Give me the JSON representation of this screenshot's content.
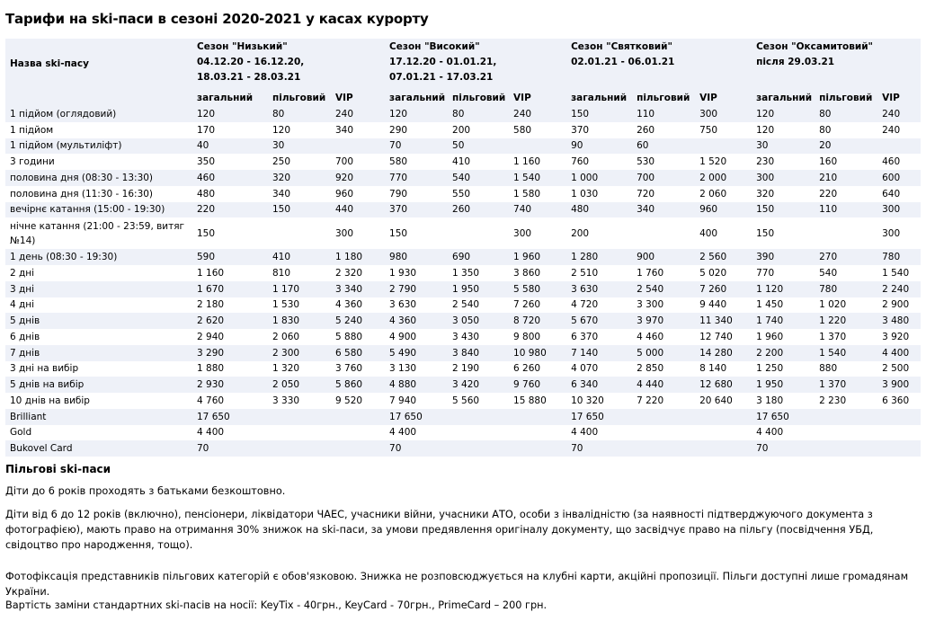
{
  "title": "Тарифи на ski-паси в сезоні 2020-2021 у касах курорту",
  "table": {
    "name_header": "Назва ski-пасу",
    "seasons": [
      {
        "name": "Сезон \"Низький\"",
        "dates1": "04.12.20 - 16.12.20,",
        "dates2": "18.03.21 - 28.03.21"
      },
      {
        "name": "Сезон \"Високий\"",
        "dates1": "17.12.20 - 01.01.21,",
        "dates2": "07.01.21 - 17.03.21"
      },
      {
        "name": "Сезон \"Святковий\"",
        "dates1": "02.01.21 - 06.01.21",
        "dates2": ""
      },
      {
        "name": "Сезон \"Оксамитовий\"",
        "dates1": "після 29.03.21",
        "dates2": ""
      }
    ],
    "sub_headers": [
      "загальний",
      "пільговий",
      "VIP"
    ],
    "rows": [
      {
        "name": "1 підйом (оглядовий)",
        "v": [
          "120",
          "80",
          "240",
          "120",
          "80",
          "240",
          "150",
          "110",
          "300",
          "120",
          "80",
          "240"
        ]
      },
      {
        "name": "1 підйом",
        "v": [
          "170",
          "120",
          "340",
          "290",
          "200",
          "580",
          "370",
          "260",
          "750",
          "120",
          "80",
          "240"
        ]
      },
      {
        "name": "1 підйом (мультиліфт)",
        "v": [
          "40",
          "30",
          "",
          "70",
          "50",
          "",
          "90",
          "60",
          "",
          "30",
          "20",
          ""
        ]
      },
      {
        "name": "3 години",
        "v": [
          "350",
          "250",
          "700",
          "580",
          "410",
          "1 160",
          "760",
          "530",
          "1 520",
          "230",
          "160",
          "460"
        ]
      },
      {
        "name": "половина дня (08:30 - 13:30)",
        "v": [
          "460",
          "320",
          "920",
          "770",
          "540",
          "1 540",
          "1 000",
          "700",
          "2 000",
          "300",
          "210",
          "600"
        ]
      },
      {
        "name": "половина дня (11:30 - 16:30)",
        "v": [
          "480",
          "340",
          "960",
          "790",
          "550",
          "1 580",
          "1 030",
          "720",
          "2 060",
          "320",
          "220",
          "640"
        ]
      },
      {
        "name": "вечірнє катання (15:00 - 19:30)",
        "v": [
          "220",
          "150",
          "440",
          "370",
          "260",
          "740",
          "480",
          "340",
          "960",
          "150",
          "110",
          "300"
        ]
      },
      {
        "name": "нічне катання (21:00 - 23:59, витяг №14)",
        "v": [
          "150",
          "",
          "300",
          "150",
          "",
          "300",
          "200",
          "",
          "400",
          "150",
          "",
          "300"
        ],
        "tall": true
      },
      {
        "name": "1 день (08:30 - 19:30)",
        "v": [
          "590",
          "410",
          "1 180",
          "980",
          "690",
          "1 960",
          "1 280",
          "900",
          "2 560",
          "390",
          "270",
          "780"
        ]
      },
      {
        "name": "2 дні",
        "v": [
          "1 160",
          "810",
          "2 320",
          "1 930",
          "1 350",
          "3 860",
          "2 510",
          "1 760",
          "5 020",
          "770",
          "540",
          "1 540"
        ]
      },
      {
        "name": "3 дні",
        "v": [
          "1 670",
          "1 170",
          "3 340",
          "2 790",
          "1 950",
          "5 580",
          "3 630",
          "2 540",
          "7 260",
          "1 120",
          "780",
          "2 240"
        ]
      },
      {
        "name": "4 дні",
        "v": [
          "2 180",
          "1 530",
          "4 360",
          "3 630",
          "2 540",
          "7 260",
          "4 720",
          "3 300",
          "9 440",
          "1 450",
          "1 020",
          "2 900"
        ]
      },
      {
        "name": "5 днів",
        "v": [
          "2 620",
          "1 830",
          "5 240",
          "4 360",
          "3 050",
          "8 720",
          "5 670",
          "3 970",
          "11 340",
          "1 740",
          "1 220",
          "3 480"
        ]
      },
      {
        "name": "6 днів",
        "v": [
          "2 940",
          "2 060",
          "5 880",
          "4 900",
          "3 430",
          "9 800",
          "6 370",
          "4 460",
          "12 740",
          "1 960",
          "1 370",
          "3 920"
        ]
      },
      {
        "name": "7 днів",
        "v": [
          "3 290",
          "2 300",
          "6 580",
          "5 490",
          "3 840",
          "10 980",
          "7 140",
          "5 000",
          "14 280",
          "2 200",
          "1 540",
          "4 400"
        ]
      },
      {
        "name": "3 дні на вибір",
        "v": [
          "1 880",
          "1 320",
          "3 760",
          "3 130",
          "2 190",
          "6 260",
          "4 070",
          "2 850",
          "8 140",
          "1 250",
          "880",
          "2 500"
        ]
      },
      {
        "name": "5 днів на вибір",
        "v": [
          "2 930",
          "2 050",
          "5 860",
          "4 880",
          "3 420",
          "9 760",
          "6 340",
          "4 440",
          "12 680",
          "1 950",
          "1 370",
          "3 900"
        ]
      },
      {
        "name": "10 днів на вибір",
        "v": [
          "4 760",
          "3 330",
          "9 520",
          "7 940",
          "5 560",
          "15 880",
          "10 320",
          "7 220",
          "20 640",
          "3 180",
          "2 230",
          "6 360"
        ]
      },
      {
        "name": "Brilliant",
        "v": [
          "17 650",
          "",
          "",
          "17 650",
          "",
          "",
          "17 650",
          "",
          "",
          "17 650",
          "",
          ""
        ]
      },
      {
        "name": "Gold",
        "v": [
          "4 400",
          "",
          "",
          "4 400",
          "",
          "",
          "4 400",
          "",
          "",
          "4 400",
          "",
          ""
        ]
      },
      {
        "name": "Bukovel Card",
        "v": [
          "70",
          "",
          "",
          "70",
          "",
          "",
          "70",
          "",
          "",
          "70",
          "",
          ""
        ]
      }
    ]
  },
  "benefits": {
    "title": "Пільгові ski-паси",
    "p1": "Діти до 6 років проходять з батьками безкоштовно.",
    "p2": "Діти від 6 до 12 років (включно), пенсіонери, ліквідатори ЧАЕС, учасники війни, учасники АТО, особи з інвалідністю (за наявності підтверджуючого документа з фотографією), мають право на отримання 30% знижок на ski-паси, за умови предявлення оригіналу документу, що засвідчує право на пільгу (посвідчення УБД, свідоцтво про народження, тощо).",
    "p3": "Фотофіксація представників пільгових категорій є обов'язковою. Знижка не розповсюджується на клубні карти, акційні пропозиції. Пільги доступні лише громадянам України.",
    "p4": "Вартість заміни стандартних ski-пасів на носії: KeyTix - 40грн., KeyCard - 70грн., PrimeCard – 200 грн."
  }
}
